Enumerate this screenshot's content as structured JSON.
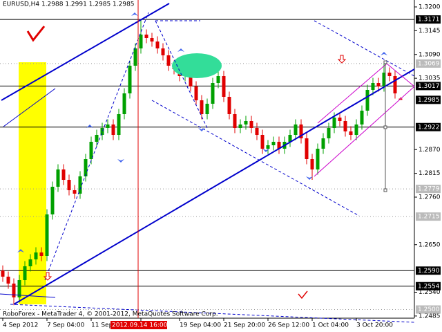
{
  "chart_data": {
    "type": "candlestick",
    "title": "EURUSD,H4  1.2988 1.2991 1.2985 1.2985",
    "footer": "RoboForex - MetaTrader 4, © 2001-2012, MetaQuotes Software Corp.",
    "up_color": "#00a000",
    "down_color": "#e00000",
    "open": [
      1.259,
      1.2576,
      1.256,
      1.2528,
      1.2568,
      1.26,
      1.2616,
      1.2632,
      1.2624,
      1.272,
      1.2784,
      1.2824,
      1.28,
      1.2776,
      1.2768,
      1.2808,
      1.2848,
      1.2888,
      1.2904,
      1.292,
      1.2928,
      1.2904,
      1.2952,
      1.3,
      1.3064,
      1.3104,
      1.3136,
      1.3128,
      1.312,
      1.3104,
      1.3088,
      1.3064,
      1.3056,
      1.304,
      1.3048,
      1.3016,
      1.2984,
      1.2952,
      1.2976,
      1.3024,
      1.304,
      1.2992,
      1.2952,
      1.292,
      1.2928,
      1.2936,
      1.292,
      1.2904,
      1.2872,
      1.288,
      1.2888,
      1.2872,
      1.2888,
      1.2904,
      1.2928,
      1.2896,
      1.2848,
      1.2824,
      1.2872,
      1.2896,
      1.292,
      1.2944,
      1.2936,
      1.2912,
      1.2904,
      1.2928,
      1.296,
      1.3008,
      1.3024,
      1.3016,
      1.3048,
      1.304,
      1.2988
    ],
    "high": [
      1.2602,
      1.2588,
      1.2572,
      1.258,
      1.2612,
      1.2628,
      1.2644,
      1.2644,
      1.2732,
      1.2796,
      1.2836,
      1.2836,
      1.2812,
      1.2788,
      1.282,
      1.286,
      1.29,
      1.2916,
      1.2932,
      1.294,
      1.294,
      1.2964,
      1.3012,
      1.3076,
      1.3116,
      1.3171,
      1.3148,
      1.314,
      1.3132,
      1.3116,
      1.31,
      1.3076,
      1.3068,
      1.306,
      1.306,
      1.3028,
      1.2996,
      1.2988,
      1.3036,
      1.3052,
      1.3052,
      1.3004,
      1.2964,
      1.294,
      1.2948,
      1.2948,
      1.2932,
      1.2916,
      1.2892,
      1.29,
      1.29,
      1.29,
      1.2916,
      1.294,
      1.294,
      1.2908,
      1.286,
      1.2884,
      1.2908,
      1.2932,
      1.2956,
      1.2956,
      1.2948,
      1.2924,
      1.294,
      1.2972,
      1.302,
      1.3036,
      1.3036,
      1.3069,
      1.306,
      1.3052,
      1.2991
    ],
    "low": [
      1.2564,
      1.2548,
      1.251,
      1.2516,
      1.2556,
      1.2588,
      1.2604,
      1.2612,
      1.2612,
      1.2708,
      1.2772,
      1.2788,
      1.2764,
      1.2756,
      1.2756,
      1.2796,
      1.2836,
      1.2876,
      1.2892,
      1.2908,
      1.2892,
      1.2892,
      1.294,
      1.2988,
      1.3052,
      1.3092,
      1.3116,
      1.3108,
      1.3092,
      1.3076,
      1.3052,
      1.3044,
      1.3028,
      1.3028,
      1.3004,
      1.2972,
      1.294,
      1.294,
      1.2964,
      1.3012,
      1.298,
      1.294,
      1.2908,
      1.2908,
      1.2916,
      1.2908,
      1.2892,
      1.286,
      1.286,
      1.2868,
      1.286,
      1.286,
      1.2876,
      1.2892,
      1.2884,
      1.2836,
      1.28,
      1.2812,
      1.286,
      1.2884,
      1.2908,
      1.2924,
      1.29,
      1.2892,
      1.2892,
      1.2916,
      1.2948,
      1.2996,
      1.3004,
      1.3004,
      1.3028,
      1.2988,
      1.2985
    ],
    "close": [
      1.2576,
      1.256,
      1.2528,
      1.2568,
      1.26,
      1.2616,
      1.2632,
      1.2624,
      1.272,
      1.2784,
      1.2824,
      1.28,
      1.2776,
      1.2768,
      1.2808,
      1.2848,
      1.2888,
      1.2904,
      1.292,
      1.2928,
      1.2904,
      1.2952,
      1.3,
      1.3064,
      1.3104,
      1.3136,
      1.3128,
      1.312,
      1.3104,
      1.3088,
      1.3064,
      1.3056,
      1.304,
      1.3048,
      1.3016,
      1.2984,
      1.2952,
      1.2976,
      1.3024,
      1.304,
      1.2992,
      1.2952,
      1.292,
      1.2928,
      1.2936,
      1.292,
      1.2904,
      1.2872,
      1.288,
      1.2888,
      1.2872,
      1.2888,
      1.2904,
      1.2928,
      1.2896,
      1.2848,
      1.2824,
      1.2872,
      1.2896,
      1.292,
      1.2944,
      1.2936,
      1.2912,
      1.2904,
      1.2928,
      1.296,
      1.3008,
      1.3024,
      1.3016,
      1.3048,
      1.304,
      1.3,
      1.2985
    ],
    "ylim": [
      1.248,
      1.3216
    ],
    "yticks": [
      {
        "value": 1.32,
        "label": "1.3200"
      },
      {
        "value": 1.3145,
        "label": "1.3145"
      },
      {
        "value": 1.309,
        "label": "1.3090"
      },
      {
        "value": 1.3035,
        "label": "1.3035"
      },
      {
        "value": 1.287,
        "label": "1.2870"
      },
      {
        "value": 1.2815,
        "label": "1.2815"
      },
      {
        "value": 1.276,
        "label": "1.2760"
      },
      {
        "value": 1.265,
        "label": "1.2650"
      },
      {
        "value": 1.254,
        "label": "1.2540"
      },
      {
        "value": 1.2485,
        "label": "1.2485"
      }
    ],
    "levels": [
      {
        "value": 1.3171,
        "label": "1.3171",
        "style": "solid"
      },
      {
        "value": 1.3069,
        "label": "1.3069",
        "style": "dotted"
      },
      {
        "value": 1.3017,
        "label": "1.3017",
        "style": "solid"
      },
      {
        "value": 1.2985,
        "label": "1.2985",
        "style": "price"
      },
      {
        "value": 1.2922,
        "label": "1.2922",
        "style": "solid"
      },
      {
        "value": 1.2779,
        "label": "1.2779",
        "style": "dotted"
      },
      {
        "value": 1.2715,
        "label": "1.2715",
        "style": "dotted"
      },
      {
        "value": 1.259,
        "label": "1.2590",
        "style": "solid"
      },
      {
        "value": 1.2554,
        "label": "1.2554",
        "style": "solid"
      },
      {
        "value": 1.25,
        "label": "1.2500",
        "style": "dotted"
      }
    ],
    "xticks": [
      {
        "value": 0,
        "label": "4 Sep 2012"
      },
      {
        "value": 8,
        "label": "7 Sep 04:00"
      },
      {
        "value": 16,
        "label": "11 Sep"
      },
      {
        "value": 25,
        "label": "2012.09.14 16:00"
      },
      {
        "value": 32,
        "label": "19 Sep 04:00"
      },
      {
        "value": 40,
        "label": "21 Sep 20:00"
      },
      {
        "value": 48,
        "label": "26 Sep 12:00"
      },
      {
        "value": 56,
        "label": "1 Oct 04:00"
      },
      {
        "value": 64,
        "label": "3 Oct 20:00"
      }
    ]
  }
}
